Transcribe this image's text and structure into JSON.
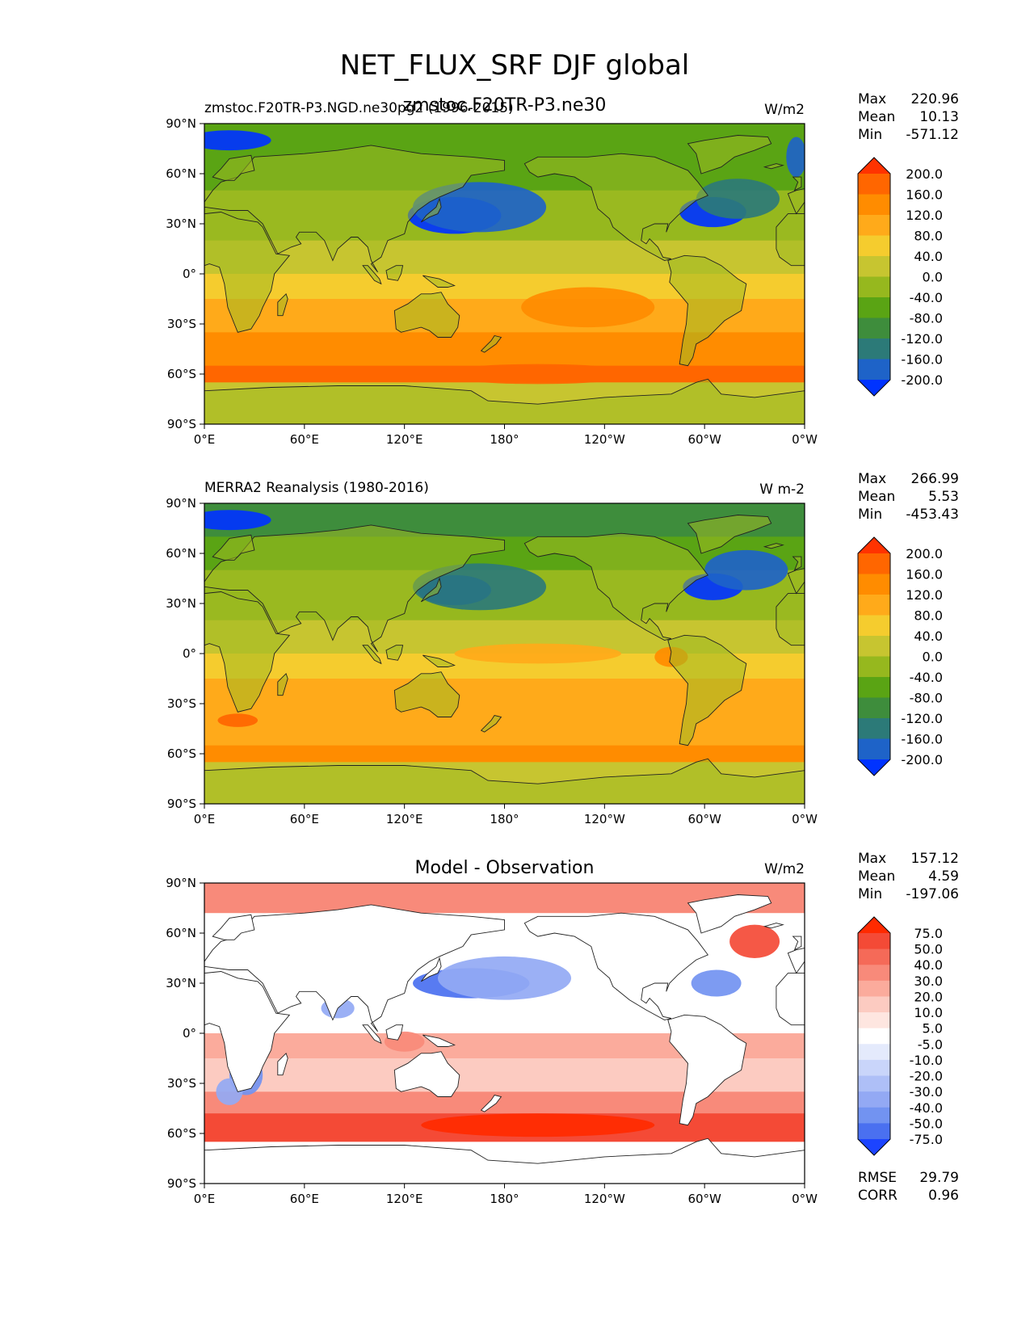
{
  "figure": {
    "title": "NET_FLUX_SRF DJF global"
  },
  "chart_data": [
    {
      "type": "heatmap",
      "panel": "test",
      "left_title": "zmstoc.F20TR-P3.NGD.ne30pg2 (1996-2015)",
      "center_title": "zmstoc.F20TR-P3.ne30",
      "units": "W/m2",
      "x_ticks": [
        "0°E",
        "60°E",
        "120°E",
        "180°",
        "120°W",
        "60°W",
        "0°W"
      ],
      "y_ticks": [
        "90°N",
        "60°N",
        "30°N",
        "0°",
        "30°S",
        "60°S",
        "90°S"
      ],
      "stats": {
        "max": "220.96",
        "mean": "10.13",
        "min": "-571.12"
      },
      "colorbar": {
        "levels": [
          "200.0",
          "160.0",
          "120.0",
          "80.0",
          "40.0",
          "0.0",
          "-40.0",
          "-80.0",
          "-120.0",
          "-160.0",
          "-200.0"
        ],
        "colors": [
          "#ff3300",
          "#ff6600",
          "#ff8c00",
          "#ffaa1a",
          "#f5cc2e",
          "#c7c530",
          "#96b81e",
          "#5aa414",
          "#3e8d3c",
          "#2c7a78",
          "#1e63c8",
          "#0033ff"
        ]
      }
    },
    {
      "type": "heatmap",
      "panel": "reference",
      "left_title": "MERRA2 Reanalysis (1980-2016)",
      "center_title": "",
      "units": "W m-2",
      "x_ticks": [
        "0°E",
        "60°E",
        "120°E",
        "180°",
        "120°W",
        "60°W",
        "0°W"
      ],
      "y_ticks": [
        "90°N",
        "60°N",
        "30°N",
        "0°",
        "30°S",
        "60°S",
        "90°S"
      ],
      "stats": {
        "max": "266.99",
        "mean": "5.53",
        "min": "-453.43"
      },
      "colorbar": {
        "levels": [
          "200.0",
          "160.0",
          "120.0",
          "80.0",
          "40.0",
          "0.0",
          "-40.0",
          "-80.0",
          "-120.0",
          "-160.0",
          "-200.0"
        ],
        "colors": [
          "#ff3300",
          "#ff6600",
          "#ff8c00",
          "#ffaa1a",
          "#f5cc2e",
          "#c7c530",
          "#96b81e",
          "#5aa414",
          "#3e8d3c",
          "#2c7a78",
          "#1e63c8",
          "#0033ff"
        ]
      }
    },
    {
      "type": "heatmap",
      "panel": "difference",
      "left_title": "",
      "center_title": "Model - Observation",
      "units": "W/m2",
      "x_ticks": [
        "0°E",
        "60°E",
        "120°E",
        "180°",
        "120°W",
        "60°W",
        "0°W"
      ],
      "y_ticks": [
        "90°N",
        "60°N",
        "30°N",
        "0°",
        "30°S",
        "60°S",
        "90°S"
      ],
      "stats": {
        "max": "157.12",
        "mean": "4.59",
        "min": "-197.06"
      },
      "extra_stats": {
        "rmse": "29.79",
        "corr": "0.96"
      },
      "colorbar": {
        "levels": [
          "75.0",
          "50.0",
          "40.0",
          "30.0",
          "20.0",
          "10.0",
          "5.0",
          "-5.0",
          "-10.0",
          "-20.0",
          "-30.0",
          "-40.0",
          "-50.0",
          "-75.0"
        ],
        "colors": [
          "#ff2a00",
          "#f44a36",
          "#f56a58",
          "#f88a7a",
          "#fbab9c",
          "#fccbc1",
          "#fee6e0",
          "#ffffff",
          "#e4eafc",
          "#c9d5fa",
          "#aebff7",
          "#93a9f4",
          "#7293f1",
          "#4a70f0",
          "#1c44ff"
        ]
      }
    }
  ]
}
